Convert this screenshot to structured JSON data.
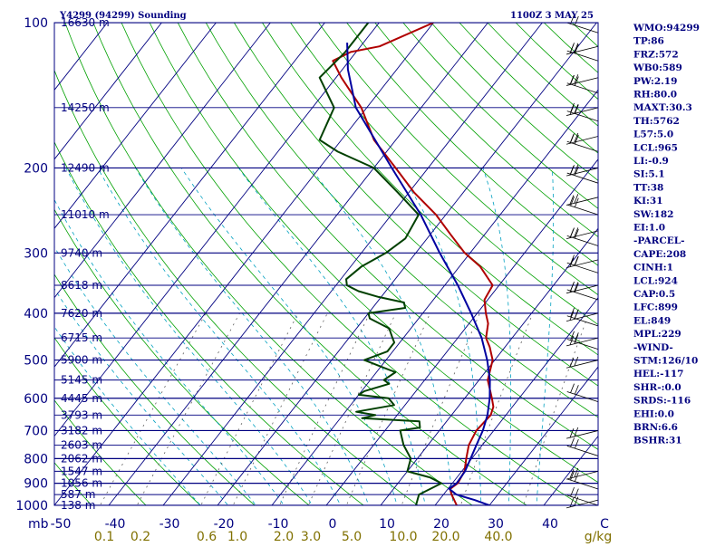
{
  "chart_data": {
    "type": "line",
    "title": "Y4299 (94299) Sounding",
    "time_label": "1100Z  3 MAY 25",
    "x_axis": {
      "prefix": "mb",
      "temperature_ticks": [
        "-50",
        "-40",
        "-30",
        "-20",
        "-10",
        "0",
        "10",
        "20",
        "30",
        "40",
        "C"
      ],
      "mixing_ratio_prefix": "",
      "mixing_ratio_ticks": [
        "0.1",
        "0.2",
        "0.6",
        "1.0",
        "2.0",
        "3.0",
        "5.0",
        "10.0",
        "20.0",
        "40.0",
        "g/kg"
      ],
      "range_c": [
        -50,
        50
      ]
    },
    "y_axis": {
      "scale": "log",
      "range_hpa": [
        1000,
        100
      ],
      "pressure_ticks": [
        100,
        200,
        300,
        400,
        500,
        600,
        700,
        800,
        900,
        1000
      ]
    },
    "height_labels": [
      {
        "p": 100,
        "label": "16630 m"
      },
      {
        "p": 150,
        "label": "14250 m"
      },
      {
        "p": 200,
        "label": "12490 m"
      },
      {
        "p": 250,
        "label": "11010 m"
      },
      {
        "p": 300,
        "label": "9740 m"
      },
      {
        "p": 350,
        "label": "8618 m"
      },
      {
        "p": 400,
        "label": "7620 m"
      },
      {
        "p": 450,
        "label": "6715 m"
      },
      {
        "p": 500,
        "label": "5900 m"
      },
      {
        "p": 550,
        "label": "5145 m"
      },
      {
        "p": 600,
        "label": "4445 m"
      },
      {
        "p": 650,
        "label": "3793 m"
      },
      {
        "p": 700,
        "label": "3182 m"
      },
      {
        "p": 750,
        "label": "2603 m"
      },
      {
        "p": 800,
        "label": "2062 m"
      },
      {
        "p": 850,
        "label": "1547 m"
      },
      {
        "p": 900,
        "label": "1056 m"
      },
      {
        "p": 950,
        "label": "587 m"
      },
      {
        "p": 1000,
        "label": "138 m"
      }
    ],
    "series": [
      {
        "name": "temperature",
        "color": "#b00000",
        "points": [
          [
            1000,
            24.0
          ],
          [
            950,
            21.5
          ],
          [
            925,
            20.4
          ],
          [
            900,
            21.0
          ],
          [
            850,
            20.5
          ],
          [
            800,
            19.0
          ],
          [
            750,
            17.5
          ],
          [
            700,
            16.8
          ],
          [
            650,
            17.2
          ],
          [
            625,
            16.5
          ],
          [
            600,
            15.0
          ],
          [
            550,
            11.6
          ],
          [
            500,
            9.6
          ],
          [
            470,
            7.2
          ],
          [
            450,
            5.2
          ],
          [
            420,
            3.5
          ],
          [
            400,
            1.6
          ],
          [
            375,
            -0.6
          ],
          [
            350,
            -1.2
          ],
          [
            320,
            -6.2
          ],
          [
            300,
            -11.0
          ],
          [
            275,
            -16.2
          ],
          [
            250,
            -21.8
          ],
          [
            225,
            -29.0
          ],
          [
            200,
            -36.0
          ],
          [
            175,
            -44.0
          ],
          [
            150,
            -51.0
          ],
          [
            130,
            -59.0
          ],
          [
            120,
            -63.0
          ],
          [
            115,
            -61.0
          ],
          [
            112,
            -56.5
          ],
          [
            100,
            -50.0
          ]
        ]
      },
      {
        "name": "dewpoint",
        "color": "#004000",
        "points": [
          [
            1000,
            16.5
          ],
          [
            950,
            15.5
          ],
          [
            900,
            18.0
          ],
          [
            875,
            15.0
          ],
          [
            860,
            12.0
          ],
          [
            850,
            10.0
          ],
          [
            800,
            8.8
          ],
          [
            750,
            5.5
          ],
          [
            700,
            2.8
          ],
          [
            690,
            6.0
          ],
          [
            670,
            5.0
          ],
          [
            660,
            -6.0
          ],
          [
            650,
            -4.0
          ],
          [
            640,
            -8.0
          ],
          [
            620,
            -2.0
          ],
          [
            600,
            -4.0
          ],
          [
            590,
            -10.0
          ],
          [
            580,
            -9.5
          ],
          [
            560,
            -6.0
          ],
          [
            550,
            -7.5
          ],
          [
            530,
            -6.5
          ],
          [
            520,
            -9.0
          ],
          [
            500,
            -14.0
          ],
          [
            480,
            -11.0
          ],
          [
            460,
            -11.0
          ],
          [
            450,
            -12.0
          ],
          [
            430,
            -14.0
          ],
          [
            410,
            -19.0
          ],
          [
            400,
            -20.0
          ],
          [
            390,
            -14.0
          ],
          [
            380,
            -15.0
          ],
          [
            370,
            -20.5
          ],
          [
            360,
            -25.0
          ],
          [
            355,
            -26.5
          ],
          [
            350,
            -28.0
          ],
          [
            340,
            -29.0
          ],
          [
            320,
            -28.0
          ],
          [
            300,
            -25.5
          ],
          [
            280,
            -24.0
          ],
          [
            250,
            -25.0
          ],
          [
            225,
            -32.0
          ],
          [
            200,
            -40.0
          ],
          [
            185,
            -49.0
          ],
          [
            175,
            -54.0
          ],
          [
            150,
            -56.0
          ],
          [
            130,
            -63.0
          ],
          [
            115,
            -62.0
          ],
          [
            100,
            -62.0
          ]
        ]
      },
      {
        "name": "parcel",
        "color": "#0000a0",
        "points": [
          [
            1000,
            30.0
          ],
          [
            975,
            26.5
          ],
          [
            950,
            22.4
          ],
          [
            924,
            20.2
          ],
          [
            900,
            20.8
          ],
          [
            850,
            20.6
          ],
          [
            800,
            19.8
          ],
          [
            750,
            18.9
          ],
          [
            700,
            18.0
          ],
          [
            650,
            16.6
          ],
          [
            600,
            14.6
          ],
          [
            550,
            12.0
          ],
          [
            500,
            8.6
          ],
          [
            450,
            4.4
          ],
          [
            400,
            -1.1
          ],
          [
            350,
            -7.6
          ],
          [
            300,
            -15.6
          ],
          [
            250,
            -24.6
          ],
          [
            200,
            -36.7
          ],
          [
            150,
            -52.0
          ],
          [
            125,
            -59.0
          ],
          [
            110,
            -63.0
          ]
        ]
      }
    ],
    "indices": [
      "WMO:94299",
      "TP:86",
      "FRZ:572",
      "WB0:589",
      "PW:2.19",
      "RH:80.0",
      "MAXT:30.3",
      "TH:5762",
      "L57:5.0",
      "LCL:965",
      "LI:-0.9",
      "SI:5.1",
      "TT:38",
      "KI:31",
      "SW:182",
      "EI:1.0",
      "-PARCEL-",
      "CAPE:208",
      "CINH:1",
      "LCL:924",
      "CAP:0.5",
      "LFC:899",
      "EL:849",
      "MPL:229",
      "-WIND-",
      "STM:126/10",
      "HEL:-117",
      "SHR-:0.0",
      "SRDS:-116",
      "EHI:0.0",
      "BRN:6.6",
      "BSHR:31"
    ],
    "colors": {
      "frame": "#000080",
      "isobar": "#000080",
      "isotherm": "#000080",
      "dry_adiabat": "#00a000",
      "moist_adiabat": "#00a0c0",
      "mixing_ratio": "#606060",
      "wind_barb": "#000000"
    }
  }
}
